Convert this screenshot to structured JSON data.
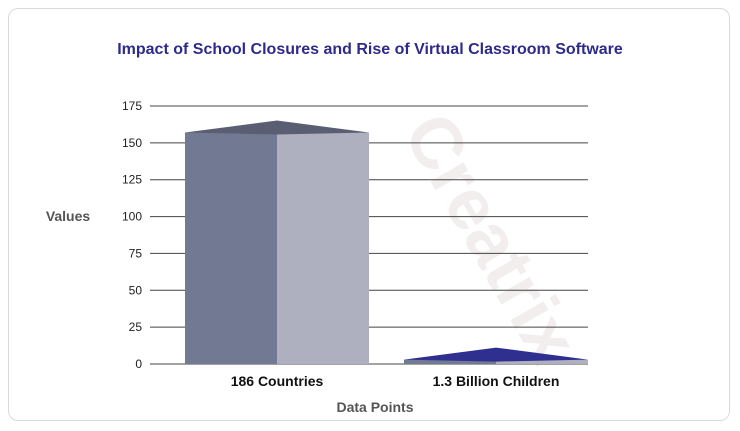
{
  "chart_data": {
    "type": "bar",
    "title": "Impact of School Closures and Rise of Virtual Classroom Software",
    "xlabel": "Data Points",
    "ylabel": "Values",
    "categories": [
      "186 Countries",
      "1.3 Billion Children"
    ],
    "values": [
      157,
      3
    ],
    "ylim": [
      0,
      175
    ],
    "yticks": [
      0,
      25,
      50,
      75,
      100,
      125,
      150,
      175
    ],
    "grid": true,
    "legend": "none",
    "watermark": "Creatrix",
    "colors": {
      "title": "#2e2a8c",
      "axis_title": "#555555",
      "bars": [
        {
          "front": "#727a93",
          "side": "#aeafbf",
          "top": "#5a5e72"
        },
        {
          "front": "#727a93",
          "side": "#aeafbf",
          "top": "#2e2f8e"
        }
      ],
      "grid": "#444444"
    }
  }
}
